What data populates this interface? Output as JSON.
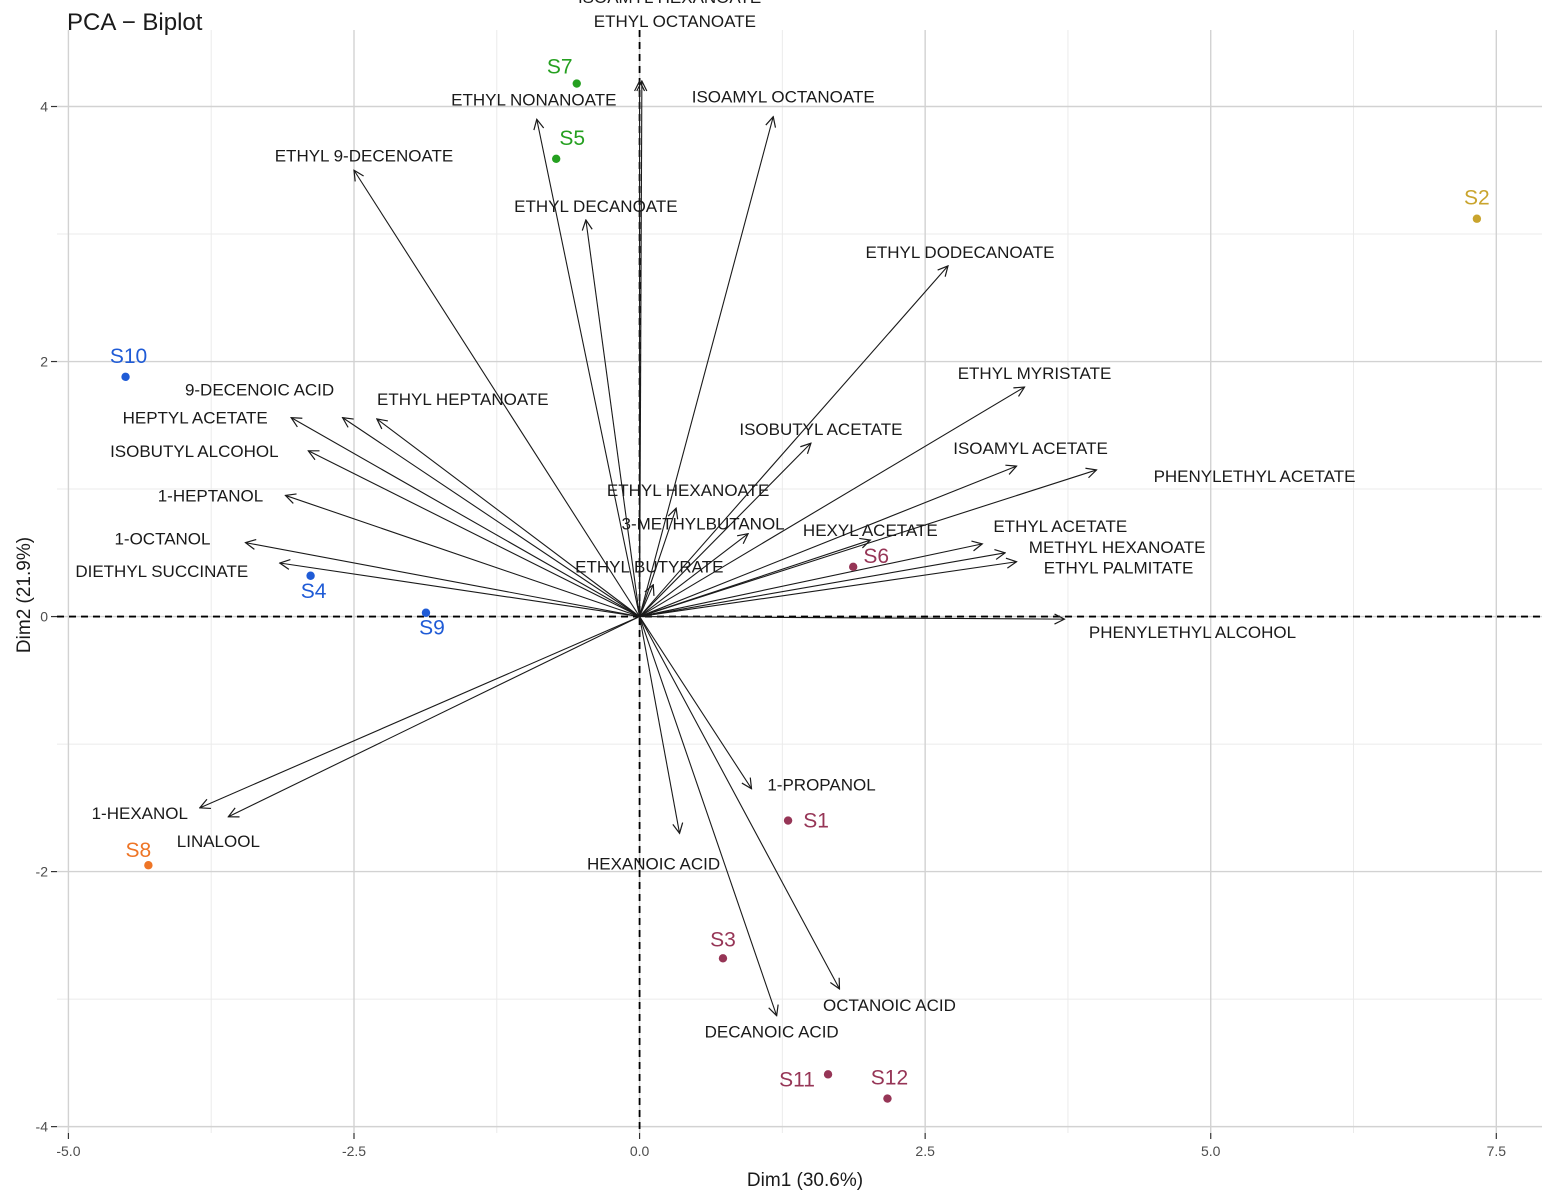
{
  "chart_data": {
    "type": "scatter",
    "title": "PCA − Biplot",
    "xlabel": "Dim1 (30.6%)",
    "ylabel": "Dim2 (21.9%)",
    "xlim": [
      -5.1,
      7.9
    ],
    "ylim": [
      -4.05,
      4.6
    ],
    "x_ticks": [
      -5.0,
      -2.5,
      0.0,
      2.5,
      5.0,
      7.5
    ],
    "x_tick_labels": [
      "-5.0",
      "-2.5",
      "0.0",
      "2.5",
      "5.0",
      "7.5"
    ],
    "y_ticks": [
      -4,
      -2,
      0,
      2,
      4
    ],
    "y_tick_labels": [
      "-4",
      "-2",
      "0",
      "2",
      "4"
    ],
    "grid": true,
    "colors": {
      "grid_major": "#d2d2d2",
      "grid_minor": "#ebebeb",
      "arrow": "#1a1a1a",
      "blue": "#1f5bd6",
      "green": "#25a020",
      "gold": "#c9a42d",
      "orange": "#ee7526",
      "maroon": "#963556"
    },
    "individuals": [
      {
        "name": "S1",
        "x": 1.3,
        "y": -1.6,
        "color": "maroon"
      },
      {
        "name": "S2",
        "x": 7.33,
        "y": 3.12,
        "color": "gold"
      },
      {
        "name": "S3",
        "x": 0.73,
        "y": -2.68,
        "color": "maroon"
      },
      {
        "name": "S4",
        "x": -2.88,
        "y": 0.32,
        "color": "blue"
      },
      {
        "name": "S5",
        "x": -0.73,
        "y": 3.59,
        "color": "green"
      },
      {
        "name": "S6",
        "x": 1.87,
        "y": 0.39,
        "color": "maroon"
      },
      {
        "name": "S7",
        "x": -0.55,
        "y": 4.18,
        "color": "green"
      },
      {
        "name": "S8",
        "x": -4.3,
        "y": -1.95,
        "color": "orange"
      },
      {
        "name": "S9",
        "x": -1.87,
        "y": 0.03,
        "color": "blue"
      },
      {
        "name": "S10",
        "x": -4.5,
        "y": 1.88,
        "color": "blue"
      },
      {
        "name": "S11",
        "x": 1.65,
        "y": -3.59,
        "color": "maroon"
      },
      {
        "name": "S12",
        "x": 2.17,
        "y": -3.78,
        "color": "maroon"
      }
    ],
    "variables": [
      {
        "name": "ISOAMYL HEXANOATE",
        "x": 0.0,
        "y": 4.2
      },
      {
        "name": "ETHYL OCTANOATE",
        "x": 0.02,
        "y": 4.2
      },
      {
        "name": "ETHYL NONANOATE",
        "x": -0.9,
        "y": 3.9
      },
      {
        "name": "ISOAMYL OCTANOATE",
        "x": 1.17,
        "y": 3.92
      },
      {
        "name": "ETHYL 9-DECENOATE",
        "x": -2.5,
        "y": 3.5
      },
      {
        "name": "ETHYL DECANOATE",
        "x": -0.47,
        "y": 3.11
      },
      {
        "name": "ETHYL DODECANOATE",
        "x": 2.7,
        "y": 2.75
      },
      {
        "name": "ETHYL MYRISTATE",
        "x": 3.37,
        "y": 1.8
      },
      {
        "name": "9-DECENOIC ACID",
        "x": -2.6,
        "y": 1.56
      },
      {
        "name": "ETHYL HEPTANOATE",
        "x": -2.3,
        "y": 1.55
      },
      {
        "name": "HEPTYL ACETATE",
        "x": -3.05,
        "y": 1.56
      },
      {
        "name": "ISOBUTYL ACETATE",
        "x": 1.5,
        "y": 1.36
      },
      {
        "name": "ISOBUTYL ALCOHOL",
        "x": -2.9,
        "y": 1.3
      },
      {
        "name": "ISOAMYL ACETATE",
        "x": 3.3,
        "y": 1.18
      },
      {
        "name": "PHENYLETHYL ACETATE",
        "x": 4.0,
        "y": 1.15
      },
      {
        "name": "1-HEPTANOL",
        "x": -3.1,
        "y": 0.95
      },
      {
        "name": "ETHYL HEXANOATE",
        "x": 0.32,
        "y": 0.85
      },
      {
        "name": "3-METHYLBUTANOL",
        "x": 0.95,
        "y": 0.65
      },
      {
        "name": "HEXYL ACETATE",
        "x": 2.02,
        "y": 0.6
      },
      {
        "name": "ETHYL ACETATE",
        "x": 3.0,
        "y": 0.57
      },
      {
        "name": "1-OCTANOL",
        "x": -3.45,
        "y": 0.58
      },
      {
        "name": "METHYL HEXANOATE",
        "x": 3.2,
        "y": 0.5
      },
      {
        "name": "ETHYL PALMITATE",
        "x": 3.3,
        "y": 0.43
      },
      {
        "name": "DIETHYL SUCCINATE",
        "x": -3.15,
        "y": 0.42
      },
      {
        "name": "ETHYL BUTYRATE",
        "x": 0.12,
        "y": 0.25
      },
      {
        "name": "PHENYLETHYL ALCOHOL",
        "x": 3.72,
        "y": -0.02
      },
      {
        "name": "1-PROPANOL",
        "x": 0.98,
        "y": -1.35
      },
      {
        "name": "1-HEXANOL",
        "x": -3.85,
        "y": -1.5
      },
      {
        "name": "LINALOOL",
        "x": -3.6,
        "y": -1.57
      },
      {
        "name": "HEXANOIC ACID",
        "x": 0.35,
        "y": -1.7
      },
      {
        "name": "OCTANOIC ACID",
        "x": 1.75,
        "y": -2.92
      },
      {
        "name": "DECANOIC ACID",
        "x": 1.2,
        "y": -3.13
      }
    ]
  }
}
